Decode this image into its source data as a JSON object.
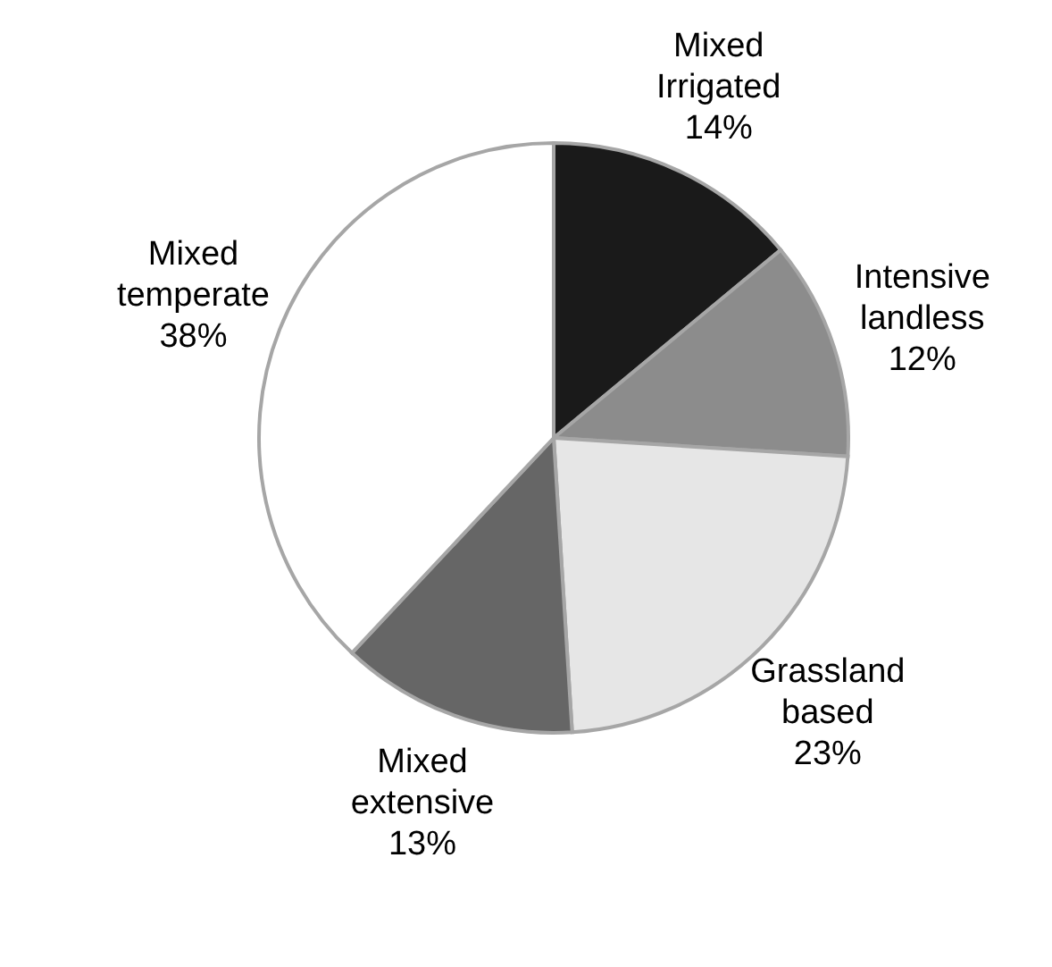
{
  "chart_data": {
    "type": "pie",
    "categories": [
      "Mixed Irrigated",
      "Intensive landless",
      "Grassland based",
      "Mixed extensive",
      "Mixed temperate"
    ],
    "values": [
      14,
      12,
      23,
      13,
      38
    ],
    "value_labels": [
      "14%",
      "12%",
      "23%",
      "13%",
      "38%"
    ],
    "colors": [
      "#1a1a1a",
      "#8c8c8c",
      "#e6e6e6",
      "#666666",
      "#ffffff"
    ]
  }
}
